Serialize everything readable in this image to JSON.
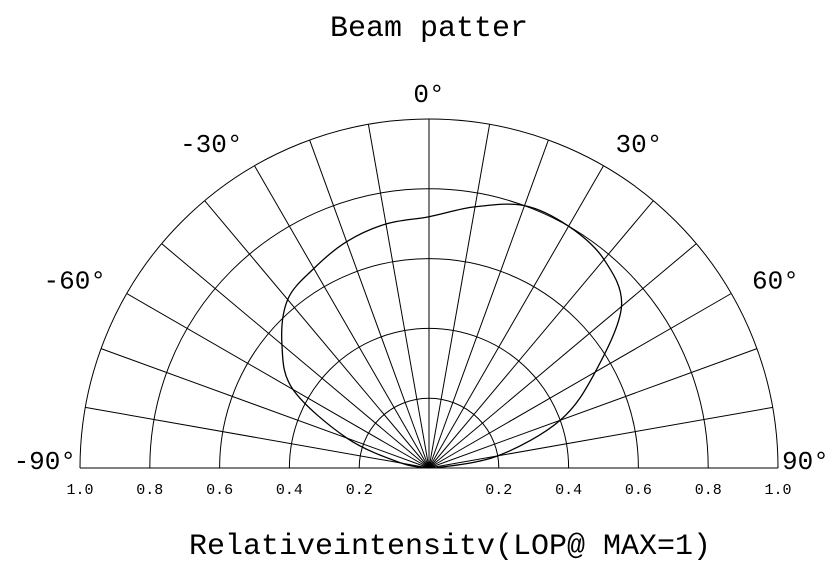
{
  "chart_data": {
    "type": "polar",
    "title": "Beam patter",
    "xlabel": "Relativeintensitv(LOP@ MAX=1)",
    "x": [
      -90,
      -80,
      -70,
      -60,
      -50,
      -40,
      -30,
      -20,
      -10,
      0,
      10,
      20,
      30,
      40,
      50,
      60,
      70,
      80,
      90
    ],
    "values": [
      0,
      0.08,
      0.25,
      0.45,
      0.55,
      0.63,
      0.66,
      0.69,
      0.71,
      0.72,
      0.76,
      0.8,
      0.8,
      0.78,
      0.72,
      0.55,
      0.4,
      0.2,
      0.02
    ],
    "color": "#000000",
    "rlim": [
      0,
      1
    ],
    "rticks": [
      0.2,
      0.4,
      0.6,
      0.8,
      {
        "value": 1,
        "label": "1.0"
      }
    ],
    "thetaticks": [
      {
        "value": -90,
        "label": "-90°"
      },
      {
        "value": -60,
        "label": "-60°"
      },
      {
        "value": -30,
        "label": "-30°"
      },
      {
        "value": 0,
        "label": "0°"
      },
      {
        "value": 30,
        "label": "30°"
      },
      {
        "value": 60,
        "label": "60°"
      },
      {
        "value": 90,
        "label": "90°"
      }
    ],
    "grid": true
  }
}
